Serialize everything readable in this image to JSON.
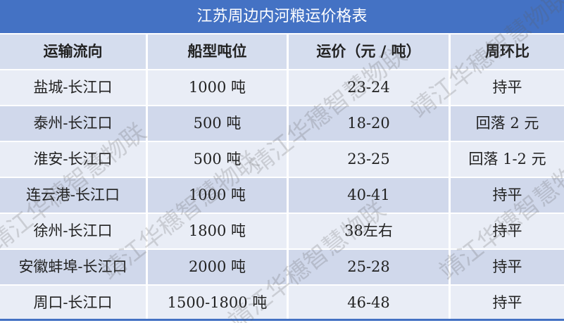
{
  "title": "江苏周边内河粮运价格表",
  "headers": [
    "运输流向",
    "船型吨位",
    "运价（元 / 吨）",
    "周环比"
  ],
  "rows": [
    [
      "盐城-长江口",
      "1000 吨",
      "23-24",
      "持平"
    ],
    [
      "泰州-长江口",
      "500 吨",
      "18-20",
      "回落 2 元"
    ],
    [
      "淮安-长江口",
      "500 吨",
      "23-25",
      "回落 1-2 元"
    ],
    [
      "连云港-长江口",
      "1000 吨",
      "40-41",
      "持平"
    ],
    [
      "徐州-长江口",
      "1800 吨",
      "38左右",
      "持平"
    ],
    [
      "安徽蚌埠-长江口",
      "2000 吨",
      "25-28",
      "持平"
    ],
    [
      "周口-长江口",
      "1500-1800 吨",
      "46-48",
      "持平"
    ]
  ],
  "watermark": "靖江华穗智慧物联",
  "colors": {
    "title_bg": "#4472C4",
    "row_light": "#E9EDF6",
    "row_dark": "#D0D8EB"
  }
}
